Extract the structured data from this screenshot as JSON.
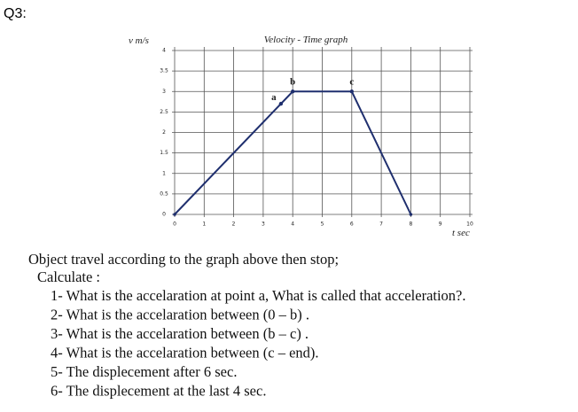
{
  "question": "Q3:",
  "chart_data": {
    "type": "line",
    "title": "Velocity - Time graph",
    "y_label": "v m/s",
    "x_label": "t sec",
    "x": [
      0,
      4,
      6,
      8
    ],
    "values": [
      0,
      3,
      3,
      0
    ],
    "color": "#1f2f6e",
    "xlim": [
      0,
      10
    ],
    "ylim": [
      0,
      4
    ],
    "xticks": [
      0,
      1,
      2,
      3,
      4,
      5,
      6,
      7,
      8,
      9,
      10
    ],
    "yticks": [
      0,
      0.5,
      1,
      1.5,
      2,
      2.5,
      3,
      3.5,
      4
    ],
    "grid": true,
    "annotations": [
      {
        "label": "a",
        "x": 3.6,
        "y": 2.7
      },
      {
        "label": "b",
        "x": 4,
        "y": 3
      },
      {
        "label": "c",
        "x": 6,
        "y": 3
      }
    ]
  },
  "text": {
    "intro": "Object travel according to the graph above then stop;",
    "calculate": "Calculate :",
    "items": [
      "1- What is the accelaration at point a, What is called  that acceleration?.",
      "2- What is the accelaration between (0 – b) .",
      "3- What is the accelaration between (b – c) .",
      "4- What is the accelaration between (c – end).",
      "5- The displecement after 6 sec.",
      "6- The displecement at the last 4 sec."
    ]
  }
}
